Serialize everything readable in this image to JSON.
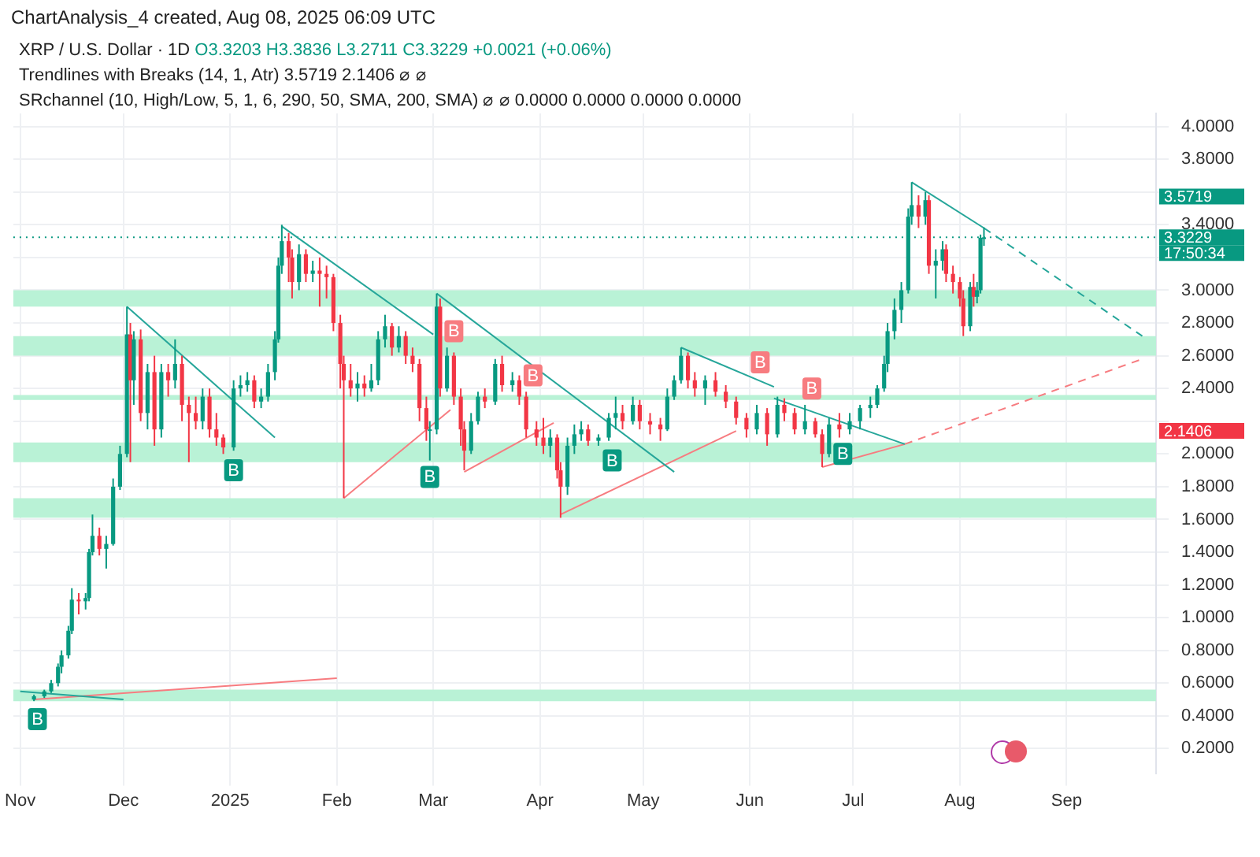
{
  "chart_data": {
    "type": "candlestick",
    "title": "XRP / U.S. Dollar · 1D",
    "annotations": [
      "ChartAnalysis_4 created, Aug 08, 2025 06:09 UTC",
      "O3.3203 H3.3836 L3.2711 C3.3229 +0.0021 (+0.06%)",
      "Trendlines with Breaks (14, 1, Atr) 3.5719 2.1406 ⌀ ⌀",
      "SRchannel (10, High/Low, 5, 1, 6, 290, 50, SMA, 200, SMA) ⌀ ⌀ 0.0000 0.0000 0.0000 0.0000",
      "3.5719",
      "3.3229",
      "17:50:34",
      "2.1406",
      {
        "text": "B",
        "x": "2024-11-06",
        "y": 0.38
      },
      {
        "text": "B",
        "x": "2025-01-02",
        "y": 1.9
      },
      {
        "text": "B",
        "x": "2025-02-28",
        "y": 1.86
      },
      {
        "text": "B",
        "x": "2025-03-07",
        "y": 2.75
      },
      {
        "text": "B",
        "x": "2025-03-30",
        "y": 2.48
      },
      {
        "text": "B",
        "x": "2025-04-22",
        "y": 1.96
      },
      {
        "text": "B",
        "x": "2025-06-04",
        "y": 2.56
      },
      {
        "text": "B",
        "x": "2025-06-19",
        "y": 2.4
      },
      {
        "text": "B",
        "x": "2025-06-28",
        "y": 2.0
      }
    ],
    "x": [
      "2024-11-05",
      "2024-11-08",
      "2024-11-10",
      "2024-11-12",
      "2024-11-13",
      "2024-11-15",
      "2024-11-16",
      "2024-11-18",
      "2024-11-20",
      "2024-11-21",
      "2024-11-22",
      "2024-11-24",
      "2024-11-26",
      "2024-11-28",
      "2024-11-30",
      "2024-12-02",
      "2024-12-03",
      "2024-12-04",
      "2024-12-06",
      "2024-12-08",
      "2024-12-10",
      "2024-12-12",
      "2024-12-14",
      "2024-12-16",
      "2024-12-18",
      "2024-12-20",
      "2024-12-22",
      "2024-12-24",
      "2024-12-26",
      "2024-12-28",
      "2024-12-30",
      "2025-01-02",
      "2025-01-04",
      "2025-01-06",
      "2025-01-08",
      "2025-01-10",
      "2025-01-12",
      "2025-01-14",
      "2025-01-15",
      "2025-01-16",
      "2025-01-18",
      "2025-01-19",
      "2025-01-21",
      "2025-01-23",
      "2025-01-25",
      "2025-01-27",
      "2025-01-29",
      "2025-01-31",
      "2025-02-02",
      "2025-02-03",
      "2025-02-05",
      "2025-02-07",
      "2025-02-09",
      "2025-02-11",
      "2025-02-13",
      "2025-02-15",
      "2025-02-17",
      "2025-02-19",
      "2025-02-21",
      "2025-02-23",
      "2025-02-25",
      "2025-02-27",
      "2025-02-28",
      "2025-03-02",
      "2025-03-03",
      "2025-03-05",
      "2025-03-07",
      "2025-03-09",
      "2025-03-10",
      "2025-03-12",
      "2025-03-14",
      "2025-03-16",
      "2025-03-19",
      "2025-03-21",
      "2025-03-24",
      "2025-03-26",
      "2025-03-28",
      "2025-03-31",
      "2025-04-02",
      "2025-04-04",
      "2025-04-06",
      "2025-04-07",
      "2025-04-09",
      "2025-04-11",
      "2025-04-13",
      "2025-04-15",
      "2025-04-18",
      "2025-04-21",
      "2025-04-23",
      "2025-04-25",
      "2025-04-28",
      "2025-04-30",
      "2025-05-03",
      "2025-05-06",
      "2025-05-08",
      "2025-05-10",
      "2025-05-12",
      "2025-05-14",
      "2025-05-16",
      "2025-05-19",
      "2025-05-22",
      "2025-05-25",
      "2025-05-28",
      "2025-05-31",
      "2025-06-03",
      "2025-06-06",
      "2025-06-09",
      "2025-06-11",
      "2025-06-14",
      "2025-06-17",
      "2025-06-20",
      "2025-06-22",
      "2025-06-24",
      "2025-06-27",
      "2025-06-30",
      "2025-07-03",
      "2025-07-06",
      "2025-07-08",
      "2025-07-10",
      "2025-07-11",
      "2025-07-13",
      "2025-07-15",
      "2025-07-17",
      "2025-07-18",
      "2025-07-20",
      "2025-07-22",
      "2025-07-23",
      "2025-07-25",
      "2025-07-27",
      "2025-07-28",
      "2025-07-30",
      "2025-08-01",
      "2025-08-02",
      "2025-08-04",
      "2025-08-05",
      "2025-08-06",
      "2025-08-07",
      "2025-08-08"
    ],
    "ohlc": [
      [
        0.5,
        0.53,
        0.49,
        0.52
      ],
      [
        0.52,
        0.56,
        0.51,
        0.55
      ],
      [
        0.55,
        0.62,
        0.54,
        0.6
      ],
      [
        0.6,
        0.72,
        0.58,
        0.7
      ],
      [
        0.7,
        0.8,
        0.66,
        0.77
      ],
      [
        0.77,
        0.95,
        0.75,
        0.92
      ],
      [
        0.92,
        1.18,
        0.9,
        1.11
      ],
      [
        1.11,
        1.15,
        1.02,
        1.1
      ],
      [
        1.1,
        1.15,
        1.05,
        1.12
      ],
      [
        1.12,
        1.42,
        1.1,
        1.4
      ],
      [
        1.4,
        1.63,
        1.38,
        1.5
      ],
      [
        1.5,
        1.55,
        1.38,
        1.42
      ],
      [
        1.42,
        1.5,
        1.3,
        1.45
      ],
      [
        1.45,
        1.85,
        1.44,
        1.8
      ],
      [
        1.8,
        2.05,
        1.78,
        2.0
      ],
      [
        2.0,
        2.9,
        1.98,
        2.73
      ],
      [
        2.73,
        2.8,
        1.95,
        2.45
      ],
      [
        2.45,
        2.75,
        2.3,
        2.7
      ],
      [
        2.7,
        2.76,
        2.2,
        2.25
      ],
      [
        2.25,
        2.55,
        2.15,
        2.5
      ],
      [
        2.5,
        2.6,
        2.05,
        2.15
      ],
      [
        2.15,
        2.55,
        2.1,
        2.5
      ],
      [
        2.5,
        2.55,
        2.35,
        2.45
      ],
      [
        2.45,
        2.7,
        2.4,
        2.55
      ],
      [
        2.55,
        2.6,
        2.2,
        2.3
      ],
      [
        2.3,
        2.35,
        1.95,
        2.25
      ],
      [
        2.25,
        2.35,
        2.15,
        2.2
      ],
      [
        2.2,
        2.4,
        2.15,
        2.35
      ],
      [
        2.35,
        2.4,
        2.1,
        2.15
      ],
      [
        2.15,
        2.25,
        2.05,
        2.1
      ],
      [
        2.1,
        2.12,
        2.0,
        2.04
      ],
      [
        2.04,
        2.45,
        2.02,
        2.4
      ],
      [
        2.4,
        2.48,
        2.35,
        2.42
      ],
      [
        2.42,
        2.5,
        2.38,
        2.45
      ],
      [
        2.45,
        2.48,
        2.28,
        2.32
      ],
      [
        2.32,
        2.4,
        2.28,
        2.35
      ],
      [
        2.35,
        2.55,
        2.32,
        2.5
      ],
      [
        2.5,
        2.75,
        2.45,
        2.7
      ],
      [
        2.7,
        3.2,
        2.68,
        3.15
      ],
      [
        3.15,
        3.4,
        3.1,
        3.3
      ],
      [
        3.3,
        3.35,
        3.05,
        3.2
      ],
      [
        3.2,
        3.25,
        2.95,
        3.05
      ],
      [
        3.05,
        3.28,
        3.0,
        3.22
      ],
      [
        3.22,
        3.25,
        3.05,
        3.1
      ],
      [
        3.1,
        3.18,
        3.05,
        3.12
      ],
      [
        3.12,
        3.2,
        2.9,
        3.1
      ],
      [
        3.1,
        3.15,
        2.95,
        3.08
      ],
      [
        3.08,
        3.1,
        2.75,
        2.8
      ],
      [
        2.8,
        2.85,
        2.4,
        2.55
      ],
      [
        2.55,
        2.6,
        1.73,
        2.45
      ],
      [
        2.45,
        2.55,
        2.35,
        2.4
      ],
      [
        2.4,
        2.5,
        2.32,
        2.43
      ],
      [
        2.43,
        2.48,
        2.35,
        2.4
      ],
      [
        2.4,
        2.55,
        2.38,
        2.45
      ],
      [
        2.45,
        2.75,
        2.42,
        2.7
      ],
      [
        2.7,
        2.85,
        2.65,
        2.78
      ],
      [
        2.78,
        2.8,
        2.6,
        2.65
      ],
      [
        2.65,
        2.78,
        2.62,
        2.72
      ],
      [
        2.72,
        2.75,
        2.55,
        2.6
      ],
      [
        2.6,
        2.65,
        2.5,
        2.55
      ],
      [
        2.55,
        2.58,
        2.2,
        2.28
      ],
      [
        2.28,
        2.35,
        2.08,
        2.15
      ],
      [
        2.15,
        2.2,
        1.96,
        2.15
      ],
      [
        2.15,
        2.98,
        2.12,
        2.9
      ],
      [
        2.9,
        2.95,
        2.35,
        2.4
      ],
      [
        2.4,
        2.65,
        2.38,
        2.6
      ],
      [
        2.6,
        2.62,
        2.3,
        2.35
      ],
      [
        2.35,
        2.4,
        2.05,
        2.15
      ],
      [
        2.15,
        2.2,
        1.9,
        2.02
      ],
      [
        2.02,
        2.25,
        2.0,
        2.2
      ],
      [
        2.2,
        2.38,
        2.18,
        2.35
      ],
      [
        2.35,
        2.4,
        2.28,
        2.32
      ],
      [
        2.32,
        2.58,
        2.3,
        2.55
      ],
      [
        2.55,
        2.6,
        2.38,
        2.42
      ],
      [
        2.42,
        2.5,
        2.38,
        2.45
      ],
      [
        2.45,
        2.48,
        2.3,
        2.35
      ],
      [
        2.35,
        2.38,
        2.1,
        2.15
      ],
      [
        2.15,
        2.2,
        2.05,
        2.1
      ],
      [
        2.1,
        2.22,
        2.0,
        2.05
      ],
      [
        2.05,
        2.15,
        1.98,
        2.1
      ],
      [
        2.1,
        2.12,
        1.85,
        1.9
      ],
      [
        1.9,
        1.95,
        1.61,
        1.8
      ],
      [
        1.8,
        2.1,
        1.75,
        2.05
      ],
      [
        2.05,
        2.18,
        2.0,
        2.12
      ],
      [
        2.12,
        2.2,
        2.08,
        2.15
      ],
      [
        2.15,
        2.18,
        2.05,
        2.08
      ],
      [
        2.08,
        2.12,
        2.05,
        2.1
      ],
      [
        2.1,
        2.25,
        2.08,
        2.22
      ],
      [
        2.22,
        2.35,
        2.15,
        2.25
      ],
      [
        2.25,
        2.3,
        2.15,
        2.2
      ],
      [
        2.2,
        2.35,
        2.18,
        2.3
      ],
      [
        2.3,
        2.33,
        2.15,
        2.2
      ],
      [
        2.2,
        2.25,
        2.12,
        2.18
      ],
      [
        2.18,
        2.22,
        2.08,
        2.15
      ],
      [
        2.15,
        2.4,
        2.14,
        2.35
      ],
      [
        2.35,
        2.48,
        2.33,
        2.45
      ],
      [
        2.45,
        2.65,
        2.43,
        2.6
      ],
      [
        2.6,
        2.62,
        2.4,
        2.45
      ],
      [
        2.45,
        2.5,
        2.35,
        2.4
      ],
      [
        2.4,
        2.48,
        2.3,
        2.45
      ],
      [
        2.45,
        2.5,
        2.35,
        2.38
      ],
      [
        2.38,
        2.42,
        2.28,
        2.32
      ],
      [
        2.32,
        2.35,
        2.18,
        2.22
      ],
      [
        2.22,
        2.25,
        2.1,
        2.15
      ],
      [
        2.15,
        2.3,
        2.12,
        2.25
      ],
      [
        2.25,
        2.28,
        2.05,
        2.12
      ],
      [
        2.12,
        2.35,
        2.1,
        2.3
      ],
      [
        2.3,
        2.34,
        2.2,
        2.25
      ],
      [
        2.25,
        2.28,
        2.12,
        2.15
      ],
      [
        2.15,
        2.3,
        2.12,
        2.2
      ],
      [
        2.2,
        2.22,
        2.1,
        2.12
      ],
      [
        2.12,
        2.15,
        1.92,
        2.0
      ],
      [
        2.0,
        2.22,
        1.98,
        2.18
      ],
      [
        2.18,
        2.25,
        2.1,
        2.15
      ],
      [
        2.15,
        2.25,
        2.12,
        2.2
      ],
      [
        2.2,
        2.3,
        2.15,
        2.28
      ],
      [
        2.28,
        2.35,
        2.22,
        2.3
      ],
      [
        2.3,
        2.42,
        2.28,
        2.4
      ],
      [
        2.4,
        2.6,
        2.38,
        2.55
      ],
      [
        2.55,
        2.8,
        2.5,
        2.75
      ],
      [
        2.75,
        2.95,
        2.7,
        2.88
      ],
      [
        2.88,
        3.05,
        2.8,
        3.0
      ],
      [
        3.0,
        3.5,
        2.98,
        3.45
      ],
      [
        3.45,
        3.66,
        3.4,
        3.52
      ],
      [
        3.52,
        3.58,
        3.38,
        3.45
      ],
      [
        3.45,
        3.6,
        3.4,
        3.55
      ],
      [
        3.55,
        3.58,
        3.1,
        3.15
      ],
      [
        3.15,
        3.25,
        2.95,
        3.18
      ],
      [
        3.18,
        3.3,
        3.12,
        3.25
      ],
      [
        3.25,
        3.28,
        3.05,
        3.1
      ],
      [
        3.1,
        3.15,
        2.98,
        3.05
      ],
      [
        3.05,
        3.08,
        2.9,
        2.95
      ],
      [
        2.95,
        3.0,
        2.72,
        2.78
      ],
      [
        2.78,
        3.05,
        2.75,
        3.02
      ],
      [
        3.02,
        3.1,
        2.9,
        2.96
      ],
      [
        2.96,
        3.05,
        2.92,
        3.0
      ],
      [
        3.0,
        3.34,
        2.98,
        3.3203
      ],
      [
        3.3203,
        3.3836,
        3.2711,
        3.3229
      ]
    ],
    "series": [
      {
        "type": "line",
        "color": "#26a69a",
        "x": [
          "2024-12-02",
          "2025-01-14"
        ],
        "values": [
          2.9,
          2.1
        ]
      },
      {
        "type": "line",
        "color": "#26a69a",
        "x": [
          "2025-01-16",
          "2025-03-01"
        ],
        "values": [
          3.39,
          2.73
        ]
      },
      {
        "type": "line",
        "color": "#26a69a",
        "x": [
          "2025-03-02",
          "2025-05-10"
        ],
        "values": [
          2.98,
          1.89
        ]
      },
      {
        "type": "line",
        "color": "#26a69a",
        "x": [
          "2025-05-12",
          "2025-06-08"
        ],
        "values": [
          2.65,
          2.41
        ]
      },
      {
        "type": "line",
        "color": "#26a69a",
        "x": [
          "2025-06-08",
          "2025-07-16"
        ],
        "values": [
          2.34,
          2.06
        ]
      },
      {
        "type": "line",
        "color": "#26a69a",
        "x": [
          "2025-07-18",
          "2025-08-08"
        ],
        "values": [
          3.66,
          3.38
        ]
      },
      {
        "type": "line",
        "color": "#26a69a",
        "line_style": "dashed",
        "x": [
          "2025-08-08",
          "2025-09-23"
        ],
        "values": [
          3.38,
          2.72
        ]
      },
      {
        "type": "line",
        "color": "#26a69a",
        "x": [
          "2024-11-01",
          "2024-12-01"
        ],
        "values": [
          0.55,
          0.5
        ]
      },
      {
        "type": "line",
        "color": "#f77c80",
        "x": [
          "2024-11-05",
          "2025-02-01"
        ],
        "values": [
          0.5,
          0.63
        ]
      },
      {
        "type": "line",
        "color": "#f77c80",
        "x": [
          "2025-02-03",
          "2025-03-06"
        ],
        "values": [
          1.73,
          2.27
        ]
      },
      {
        "type": "line",
        "color": "#f77c80",
        "x": [
          "2025-03-10",
          "2025-04-05"
        ],
        "values": [
          1.89,
          2.19
        ]
      },
      {
        "type": "line",
        "color": "#f77c80",
        "x": [
          "2025-04-07",
          "2025-05-28"
        ],
        "values": [
          1.63,
          2.14
        ]
      },
      {
        "type": "line",
        "color": "#f77c80",
        "x": [
          "2025-06-22",
          "2025-07-16"
        ],
        "values": [
          1.92,
          2.06
        ]
      },
      {
        "type": "line",
        "color": "#f77c80",
        "line_style": "dashed",
        "x": [
          "2025-07-16",
          "2025-09-23"
        ],
        "values": [
          2.06,
          2.58
        ]
      }
    ],
    "bands": [
      {
        "axis": "y",
        "from": 2.9,
        "to": 3.0,
        "color": "#b9f2d6"
      },
      {
        "axis": "y",
        "from": 2.6,
        "to": 2.72,
        "color": "#b9f2d6"
      },
      {
        "axis": "y",
        "from": 2.33,
        "to": 2.36,
        "color": "#b9f2d6"
      },
      {
        "axis": "y",
        "from": 1.95,
        "to": 2.07,
        "color": "#b9f2d6"
      },
      {
        "axis": "y",
        "from": 1.61,
        "to": 1.73,
        "color": "#b9f2d6"
      },
      {
        "axis": "y",
        "from": 0.49,
        "to": 0.56,
        "color": "#b9f2d6"
      }
    ],
    "ref_lines": [
      {
        "axis": "y",
        "value": 3.3229,
        "color": "#089981",
        "line_style": "dotted"
      }
    ],
    "xlim": [
      "2024-10-30",
      "2025-09-27"
    ],
    "xticks": [
      {
        "value": "2024-11-01",
        "label": "Nov"
      },
      {
        "value": "2024-12-01",
        "label": "Dec"
      },
      {
        "value": "2025-01-01",
        "label": "2025"
      },
      {
        "value": "2025-02-01",
        "label": "Feb"
      },
      {
        "value": "2025-03-01",
        "label": "Mar"
      },
      {
        "value": "2025-04-01",
        "label": "Apr"
      },
      {
        "value": "2025-05-01",
        "label": "May"
      },
      {
        "value": "2025-06-01",
        "label": "Jun"
      },
      {
        "value": "2025-07-01",
        "label": "Jul"
      },
      {
        "value": "2025-08-01",
        "label": "Aug"
      },
      {
        "value": "2025-09-01",
        "label": "Sep"
      }
    ],
    "ylim": [
      0.05,
      4.08
    ],
    "yticks": [
      {
        "value": 0.2,
        "label": "0.2000"
      },
      {
        "value": 0.4,
        "label": "0.4000"
      },
      {
        "value": 0.6,
        "label": "0.6000"
      },
      {
        "value": 0.8,
        "label": "0.8000"
      },
      {
        "value": 1.0,
        "label": "1.0000"
      },
      {
        "value": 1.2,
        "label": "1.2000"
      },
      {
        "value": 1.4,
        "label": "1.4000"
      },
      {
        "value": 1.6,
        "label": "1.6000"
      },
      {
        "value": 1.8,
        "label": "1.8000"
      },
      {
        "value": 2.0,
        "label": "2.0000"
      },
      {
        "value": 2.2,
        "label": null
      },
      {
        "value": 2.4,
        "label": "2.4000"
      },
      {
        "value": 2.6,
        "label": "2.6000"
      },
      {
        "value": 2.8,
        "label": "2.8000"
      },
      {
        "value": 3.0,
        "label": "3.0000"
      },
      {
        "value": 3.2,
        "label": null
      },
      {
        "value": 3.4,
        "label": "3.4000"
      },
      {
        "value": 3.6,
        "label": null
      },
      {
        "value": 3.8,
        "label": "3.8000"
      },
      {
        "value": 4.0,
        "label": "4.0000"
      }
    ],
    "grid": true,
    "legend": false
  }
}
